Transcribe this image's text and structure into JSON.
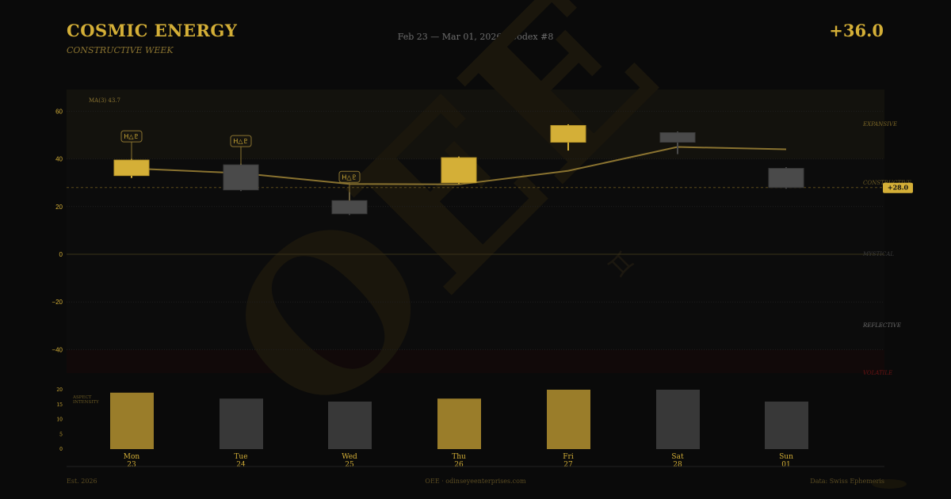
{
  "header": {
    "title": "COSMIC ENERGY",
    "subtitle": "CONSTRUCTIVE WEEK",
    "date_range": "Feb 23 — Mar 01, 2026  ·  Codex #8",
    "score": "+36.0"
  },
  "colors": {
    "background": "#0a0a0a",
    "gold": "#d4af37",
    "gold_dim": "#8a7330",
    "bar_gold": "#9a7d2a",
    "gray_candle": "#4a4a4a",
    "gray_bar": "#383838",
    "volatile_red": "#6b1414",
    "expansive_zone": "#13120d",
    "volatile_zone": "#110909"
  },
  "footer": {
    "left": "Est. 2026",
    "center": "OEE  ·  odinseyeenterprises.com",
    "right": "Data: Swiss Ephemeris"
  },
  "watermark": {
    "text": "OEE",
    "glyph": "♊"
  },
  "chart_data": [
    {
      "type": "candlestick",
      "title": "Cosmic Energy",
      "ylim": [
        -50,
        70
      ],
      "yticks": [
        60,
        40,
        20,
        0,
        -20,
        -40
      ],
      "ytick_labels": [
        "60",
        "40",
        "20",
        "0",
        "−20",
        "−40"
      ],
      "grid": true,
      "ma_label": "MA(3) 43.7",
      "current_marker": {
        "value": 28,
        "label": "+28.0"
      },
      "zones": [
        {
          "name": "EXPANSIVE",
          "from": 40,
          "to": 70
        },
        {
          "name": "CONSTRUCTIVE",
          "from": 28,
          "to": 40
        },
        {
          "name": "MYSTICAL",
          "from": 0,
          "to": 0
        },
        {
          "name": "REFLECTIVE",
          "from": -40,
          "to": -20
        },
        {
          "name": "VOLATILE",
          "from": -50,
          "to": -40
        }
      ],
      "categories": [
        "Mon 23",
        "Tue 24",
        "Wed 25",
        "Thu 26",
        "Fri 27",
        "Sat 28",
        "Sun 01"
      ],
      "candles": [
        {
          "day": "Mon",
          "date": "23",
          "open": 33,
          "close": 39.5,
          "high": 40,
          "low": 32,
          "bullish": true,
          "aspect": "H△♇"
        },
        {
          "day": "Tue",
          "date": "24",
          "open": 37.5,
          "close": 27,
          "high": 38,
          "low": 26.5,
          "bullish": false,
          "aspect": "H△♇"
        },
        {
          "day": "Wed",
          "date": "25",
          "open": 22.5,
          "close": 17,
          "high": 26,
          "low": 16.5,
          "bullish": false,
          "aspect": "H△♇"
        },
        {
          "day": "Thu",
          "date": "26",
          "open": 30,
          "close": 40.5,
          "high": 41,
          "low": 29.5,
          "bullish": true,
          "aspect": ""
        },
        {
          "day": "Fri",
          "date": "27",
          "open": 47,
          "close": 54,
          "high": 54.5,
          "low": 43.5,
          "bullish": true,
          "aspect": ""
        },
        {
          "day": "Sat",
          "date": "28",
          "open": 51,
          "close": 47,
          "high": 51.5,
          "low": 42,
          "bullish": false,
          "aspect": ""
        },
        {
          "day": "Sun",
          "date": "01",
          "open": 36,
          "close": 28,
          "high": 36.5,
          "low": 27.5,
          "bullish": false,
          "aspect": ""
        }
      ],
      "moving_average": [
        36,
        34,
        29.5,
        29.3,
        35,
        45,
        44
      ]
    },
    {
      "type": "bar",
      "ylabel": "ASPECT INTENSITY",
      "ylim": [
        0,
        20
      ],
      "yticks": [
        0,
        5,
        10,
        15,
        20
      ],
      "categories": [
        "Mon 23",
        "Tue 24",
        "Wed 25",
        "Thu 26",
        "Fri 27",
        "Sat 28",
        "Sun 01"
      ],
      "values": [
        19,
        17,
        16,
        17,
        20,
        20,
        16
      ],
      "highlighted": [
        true,
        false,
        false,
        true,
        true,
        false,
        false
      ]
    }
  ]
}
